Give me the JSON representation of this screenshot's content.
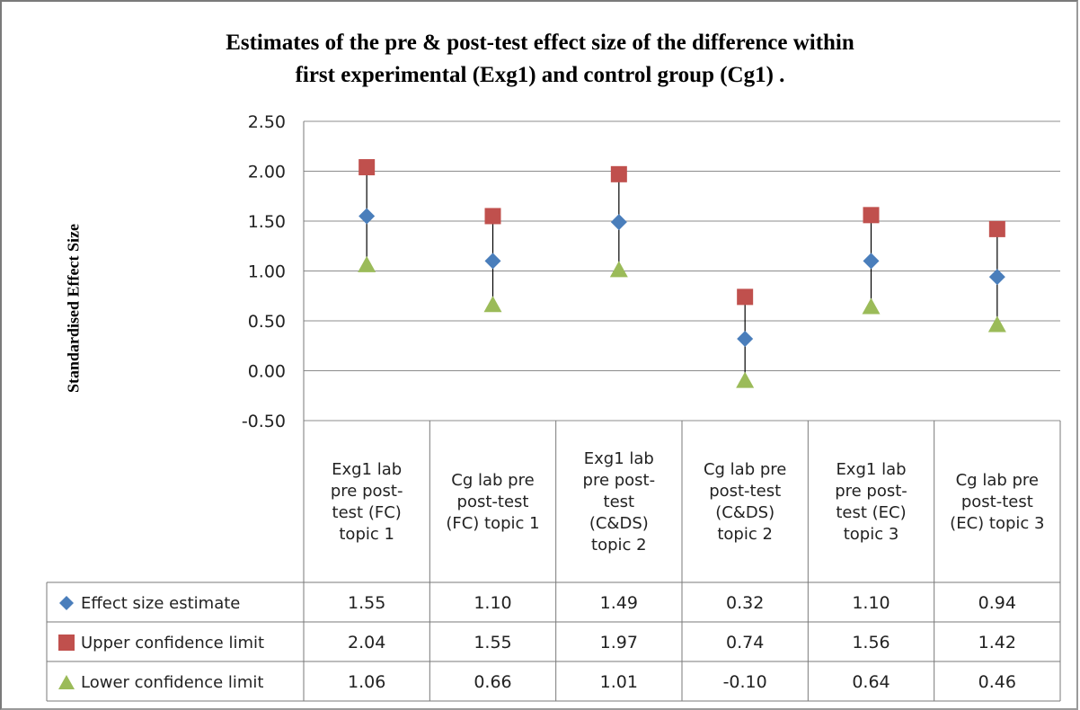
{
  "chart_data": {
    "type": "scatter",
    "title_lines": [
      "Estimates of the pre & post-test  effect size of the difference within",
      "first experimental (Exg1) and control group (Cg1) ."
    ],
    "ylabel": "Standardised Effect Size",
    "ylim": [
      -0.5,
      2.5
    ],
    "yticks": [
      "2.50",
      "2.00",
      "1.50",
      "1.00",
      "0.50",
      "0.00",
      "-0.50"
    ],
    "ytick_values": [
      2.5,
      2.0,
      1.5,
      1.0,
      0.5,
      0.0,
      -0.5
    ],
    "grid": true,
    "error_bars": "vertical line from lower to upper confidence limit",
    "categories": [
      [
        "Exg1 lab",
        "pre post-",
        "test (FC)",
        "topic 1"
      ],
      [
        "Cg lab pre",
        "post-test",
        "(FC) topic 1"
      ],
      [
        "Exg1 lab",
        "pre post-",
        "test",
        "(C&DS)",
        "topic 2"
      ],
      [
        "Cg lab pre",
        "post-test",
        "(C&DS)",
        "topic 2"
      ],
      [
        "Exg1 lab",
        "pre post-",
        "test (EC)",
        "topic 3"
      ],
      [
        "Cg lab pre",
        "post-test",
        "(EC) topic 3"
      ]
    ],
    "series": [
      {
        "name": "Effect size estimate",
        "marker": "diamond",
        "color": "#4a7ebb",
        "values": [
          1.55,
          1.1,
          1.49,
          0.32,
          1.1,
          0.94
        ],
        "labels": [
          "1.55",
          "1.10",
          "1.49",
          "0.32",
          "1.10",
          "0.94"
        ]
      },
      {
        "name": "Upper confidence limit",
        "marker": "square",
        "color": "#c0504d",
        "values": [
          2.04,
          1.55,
          1.97,
          0.74,
          1.56,
          1.42
        ],
        "labels": [
          "2.04",
          "1.55",
          "1.97",
          "0.74",
          "1.56",
          "1.42"
        ]
      },
      {
        "name": "Lower confidence limit",
        "marker": "triangle",
        "color": "#9bbb59",
        "values": [
          1.06,
          0.66,
          1.01,
          -0.1,
          0.64,
          0.46
        ],
        "labels": [
          "1.06",
          "0.66",
          "1.01",
          "-0.10",
          "0.64",
          "0.46"
        ]
      }
    ]
  }
}
